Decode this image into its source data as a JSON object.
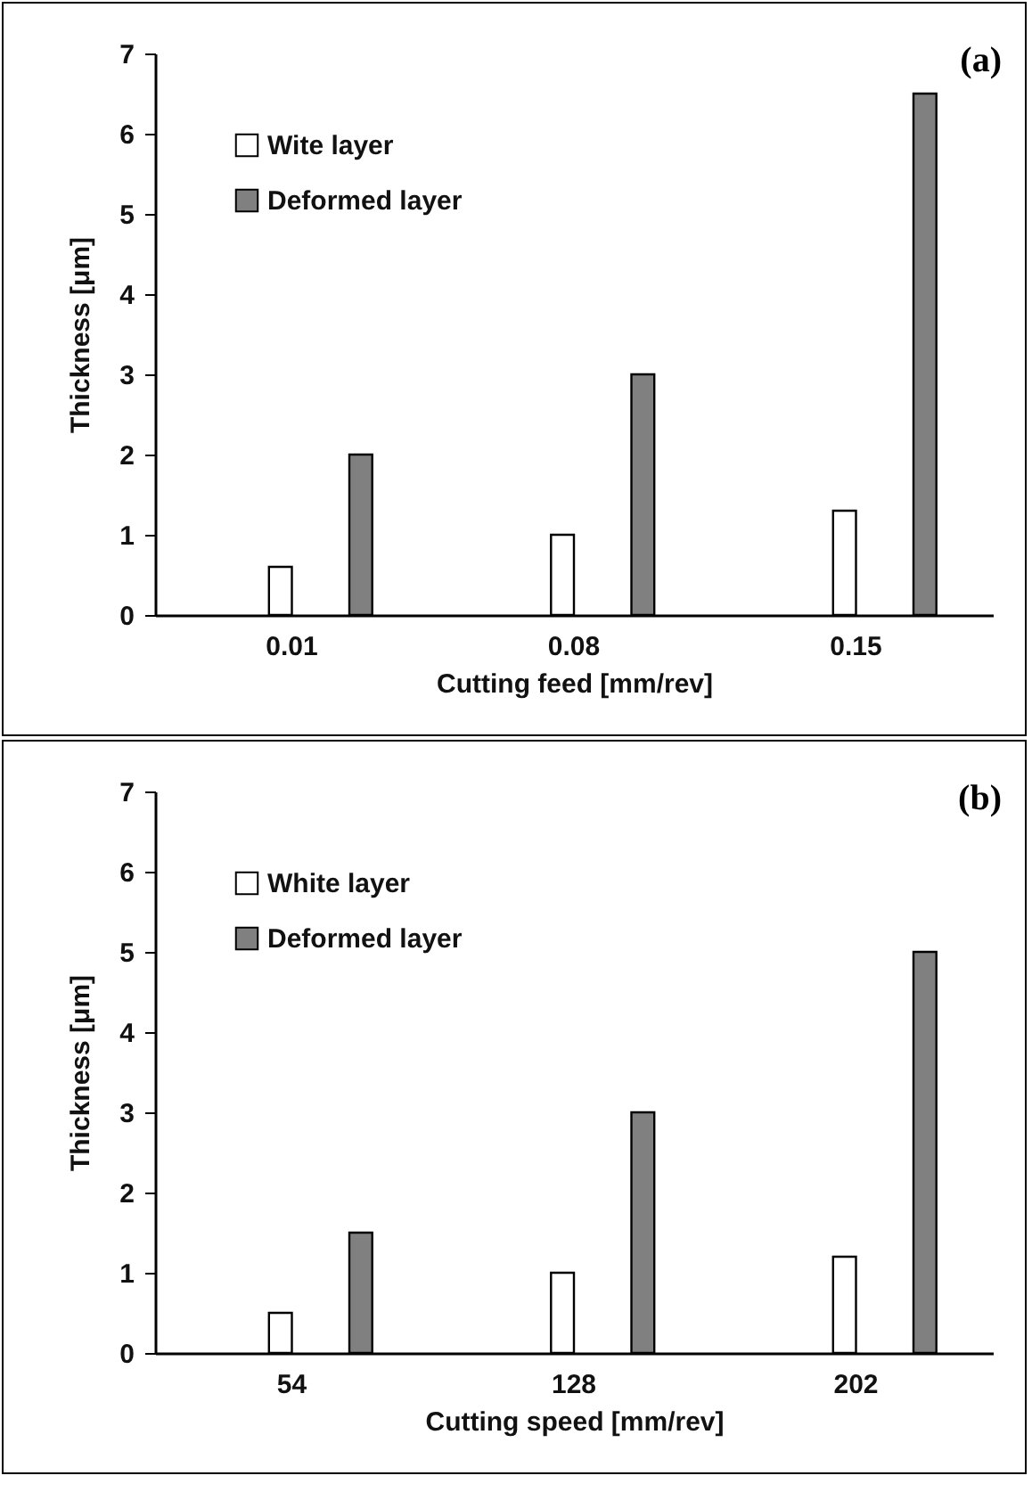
{
  "chart_data": [
    {
      "type": "bar",
      "categories": [
        "0.01",
        "0.08",
        "0.15"
      ],
      "xlabel": "Cutting feed [mm/rev]",
      "ylabel": "Thickness [μm]",
      "ylim": [
        0,
        7
      ],
      "yticks": [
        0,
        1,
        2,
        3,
        4,
        5,
        6,
        7
      ],
      "legend": "top left",
      "annotations": [
        "(a)"
      ],
      "series": [
        {
          "name": "Wite layer",
          "color": "#ffffff",
          "values": [
            0.6,
            1,
            1.3
          ]
        },
        {
          "name": "Deformed layer",
          "color": "#808080",
          "values": [
            2,
            3,
            6.5
          ]
        }
      ]
    },
    {
      "type": "bar",
      "categories": [
        "54",
        "128",
        "202"
      ],
      "xlabel": "Cutting speed [mm/rev]",
      "ylabel": "Thickness [μm]",
      "ylim": [
        0,
        7
      ],
      "yticks": [
        0,
        1,
        2,
        3,
        4,
        5,
        6,
        7
      ],
      "legend": "top left",
      "annotations": [
        "(b)"
      ],
      "series": [
        {
          "name": "White layer",
          "color": "#ffffff",
          "values": [
            0.5,
            1,
            1.2
          ]
        },
        {
          "name": "Deformed layer",
          "color": "#808080",
          "values": [
            1.5,
            3,
            5
          ]
        }
      ]
    }
  ]
}
